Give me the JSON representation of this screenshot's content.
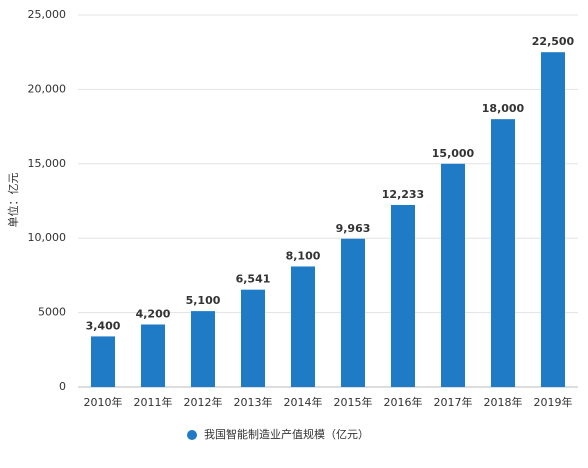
{
  "chart_data": {
    "type": "bar",
    "y_label": "单位：亿元",
    "categories": [
      "2010年",
      "2011年",
      "2012年",
      "2013年",
      "2014年",
      "2015年",
      "2016年",
      "2017年",
      "2018年",
      "2019年"
    ],
    "series": [
      {
        "name": "我国智能制造业产值规模（亿元）",
        "color": "#1f7bc6",
        "values": [
          3400,
          4200,
          5100,
          6541,
          8100,
          9963,
          12233,
          15000,
          18000,
          22500
        ],
        "value_labels": [
          "3,400",
          "4,200",
          "5,100",
          "6,541",
          "8,100",
          "9,963",
          "12,233",
          "15,000",
          "18,000",
          "22,500"
        ]
      }
    ],
    "ylim": [
      0,
      25000
    ],
    "yticks": [
      0,
      5000,
      {
        "value": 10000,
        "label": "10,000"
      },
      {
        "value": 15000,
        "label": "15,000"
      },
      {
        "value": 20000,
        "label": "20,000"
      },
      {
        "value": 25000,
        "label": "25,000"
      }
    ],
    "grid": true,
    "legend": "bottom"
  }
}
